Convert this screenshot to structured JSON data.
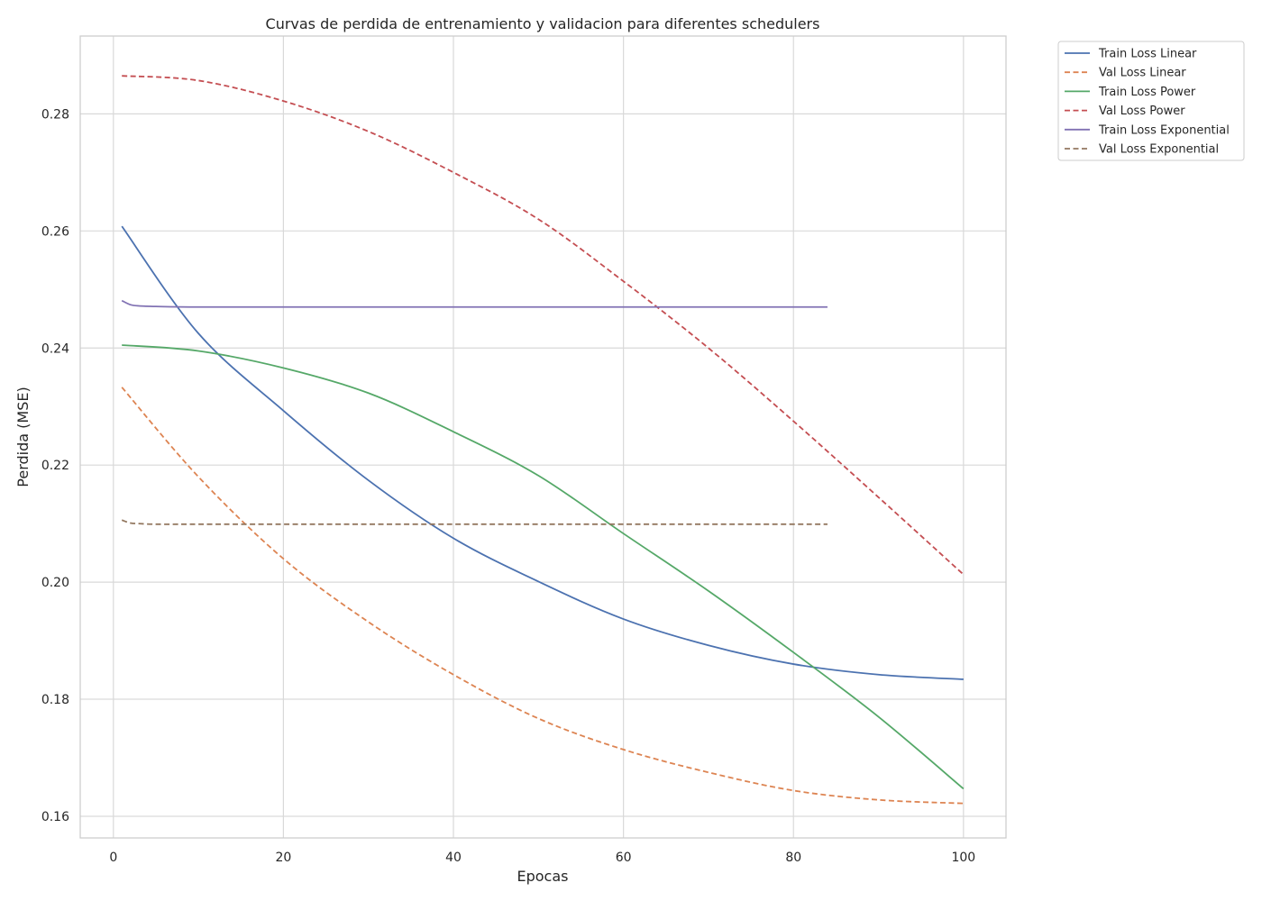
{
  "chart_data": {
    "type": "line",
    "title": "Curvas de perdida de entrenamiento y validacion para diferentes schedulers",
    "xlabel": "Epocas",
    "ylabel": "Perdida (MSE)",
    "xlim": [
      -3.9,
      105
    ],
    "ylim": [
      0.1563,
      0.2933
    ],
    "xticks": [
      "0",
      "20",
      "40",
      "60",
      "80",
      "100"
    ],
    "yticks": [
      "0.16",
      "0.18",
      "0.20",
      "0.22",
      "0.24",
      "0.26",
      "0.28"
    ],
    "grid": true,
    "legend_position": "outside-top-right",
    "series": [
      {
        "name": "Train Loss Linear",
        "color": "#4c72b0",
        "dash": "solid",
        "x": [
          1,
          10,
          20,
          30,
          40,
          50,
          60,
          70,
          80,
          90,
          100
        ],
        "y": [
          0.2608,
          0.2425,
          0.2293,
          0.2174,
          0.2075,
          0.2001,
          0.1937,
          0.1892,
          0.186,
          0.1842,
          0.1834
        ]
      },
      {
        "name": "Val Loss Linear",
        "color": "#dd8452",
        "dash": "dashed",
        "x": [
          1,
          10,
          20,
          30,
          40,
          50,
          60,
          70,
          80,
          90,
          100
        ],
        "y": [
          0.2333,
          0.218,
          0.204,
          0.1932,
          0.1842,
          0.1767,
          0.1714,
          0.1675,
          0.1644,
          0.1628,
          0.1622
        ]
      },
      {
        "name": "Train Loss Power",
        "color": "#55a868",
        "dash": "solid",
        "x": [
          1,
          10,
          20,
          30,
          40,
          50,
          60,
          70,
          80,
          90,
          100
        ],
        "y": [
          0.2405,
          0.2395,
          0.2366,
          0.2323,
          0.2257,
          0.2182,
          0.2083,
          0.1985,
          0.188,
          0.177,
          0.1647
        ]
      },
      {
        "name": "Val Loss Power",
        "color": "#c44e52",
        "dash": "dashed",
        "x": [
          1,
          10,
          20,
          30,
          40,
          50,
          60,
          70,
          80,
          90,
          100
        ],
        "y": [
          0.2865,
          0.2857,
          0.2822,
          0.277,
          0.27,
          0.262,
          0.2514,
          0.24,
          0.2275,
          0.2145,
          0.2013
        ]
      },
      {
        "name": "Train Loss Exponential",
        "color": "#8172b3",
        "dash": "solid",
        "x": [
          1,
          2,
          3,
          5,
          10,
          20,
          40,
          60,
          84
        ],
        "y": [
          0.2481,
          0.2474,
          0.2472,
          0.2471,
          0.247,
          0.247,
          0.247,
          0.247,
          0.247
        ]
      },
      {
        "name": "Val Loss Exponential",
        "color": "#937860",
        "dash": "dashed",
        "x": [
          1,
          2,
          3,
          5,
          10,
          20,
          40,
          60,
          84
        ],
        "y": [
          0.2106,
          0.2101,
          0.21,
          0.2099,
          0.2099,
          0.2099,
          0.2099,
          0.2099,
          0.2099
        ]
      }
    ]
  }
}
